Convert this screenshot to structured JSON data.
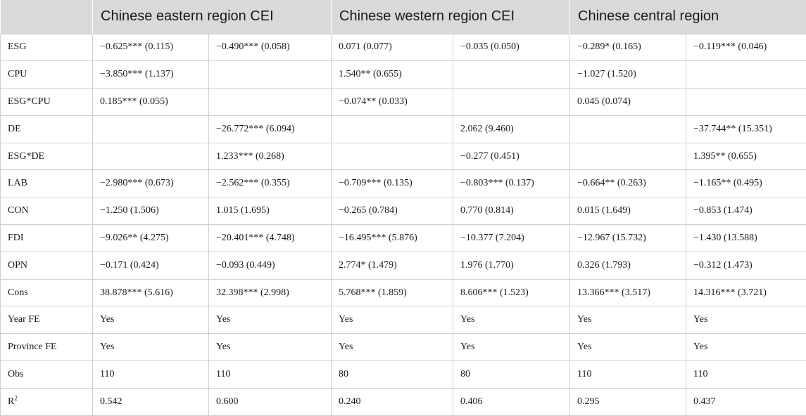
{
  "header": {
    "blank": "",
    "eastern": "Chinese eastern region CEI",
    "western": "Chinese western region CEI",
    "central": "Chinese central region"
  },
  "rows": [
    {
      "label": "ESG",
      "cells": [
        "−0.625*** (0.115)",
        "−0.490*** (0.058)",
        "0.071 (0.077)",
        "−0.035 (0.050)",
        "−0.289* (0.165)",
        "−0.119*** (0.046)"
      ]
    },
    {
      "label": "CPU",
      "cells": [
        "−3.850*** (1.137)",
        "",
        "1.540** (0.655)",
        "",
        "−1.027 (1.520)",
        ""
      ]
    },
    {
      "label": "ESG*CPU",
      "cells": [
        "0.185*** (0.055)",
        "",
        "−0.074** (0.033)",
        "",
        "0.045 (0.074)",
        ""
      ]
    },
    {
      "label": "DE",
      "cells": [
        "",
        "−26.772*** (6.094)",
        "",
        "2.062 (9.460)",
        "",
        "−37.744** (15.351)"
      ]
    },
    {
      "label": "ESG*DE",
      "cells": [
        "",
        "1.233*** (0.268)",
        "",
        "−0.277 (0.451)",
        "",
        "1.395** (0.655)"
      ]
    },
    {
      "label": "LAB",
      "cells": [
        "−2.980*** (0.673)",
        "−2.562*** (0.355)",
        "−0.709*** (0.135)",
        "−0.803*** (0.137)",
        "−0.664** (0.263)",
        "−1.165** (0.495)"
      ]
    },
    {
      "label": "CON",
      "cells": [
        "−1.250 (1.506)",
        "1.015 (1.695)",
        "−0.265 (0.784)",
        "0.770 (0.814)",
        "0.015 (1.649)",
        "−0.853 (1.474)"
      ]
    },
    {
      "label": "FDI",
      "cells": [
        "−9.026** (4.275)",
        "−20.401*** (4.748)",
        "−16.495*** (5.876)",
        "−10.377 (7.204)",
        "−12.967 (15.732)",
        "−1.430 (13.588)"
      ]
    },
    {
      "label": "OPN",
      "cells": [
        "−0.171 (0.424)",
        "−0.093 (0.449)",
        "2.774* (1.479)",
        "1.976 (1.770)",
        "0.326 (1.793)",
        "−0.312 (1.473)"
      ]
    },
    {
      "label": "Cons",
      "cells": [
        "38.878*** (5.616)",
        "32.398*** (2.998)",
        "5.768*** (1.859)",
        "8.606*** (1.523)",
        "13.366*** (3.517)",
        "14.316*** (3.721)"
      ]
    },
    {
      "label": "Year FE",
      "cells": [
        "Yes",
        "Yes",
        "Yes",
        "Yes",
        "Yes",
        "Yes"
      ]
    },
    {
      "label": "Province FE",
      "cells": [
        "Yes",
        "Yes",
        "Yes",
        "Yes",
        "Yes",
        "Yes"
      ]
    },
    {
      "label": "Obs",
      "cells": [
        "110",
        "110",
        "80",
        "80",
        "110",
        "110"
      ]
    },
    {
      "label_main": "R",
      "label_sup": "2",
      "cells": [
        "0.542",
        "0.600",
        "0.240",
        "0.406",
        "0.295",
        "0.437"
      ]
    }
  ]
}
